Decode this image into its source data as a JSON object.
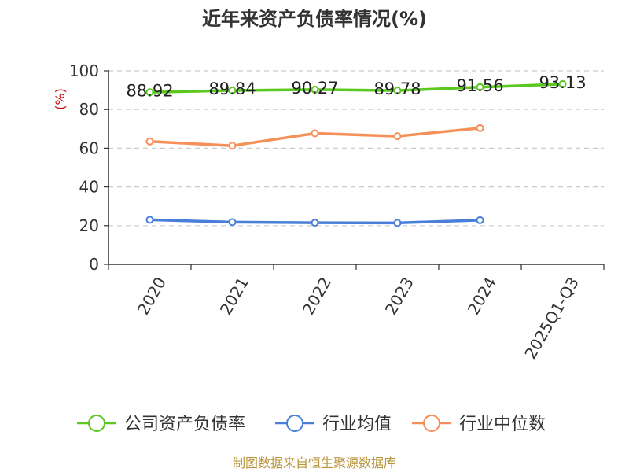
{
  "chart_data": {
    "type": "line",
    "title": "近年来资产负债率情况(%)",
    "ylabel": "(%)",
    "ylim": [
      0,
      100
    ],
    "yticks": [
      0,
      20,
      40,
      60,
      80,
      100
    ],
    "grid": true,
    "legend_position": "bottom",
    "categories": [
      "2020",
      "2021",
      "2022",
      "2023",
      "2024",
      "2025Q1-Q3"
    ],
    "series": [
      {
        "name": "公司资产负债率",
        "color": "#5ac81e",
        "values": [
          88.92,
          89.84,
          90.27,
          89.78,
          91.56,
          93.13
        ],
        "labels": [
          "88.92",
          "89.84",
          "90.27",
          "89.78",
          "91.56",
          "93.13"
        ]
      },
      {
        "name": "行业均值",
        "color": "#4a7fd9",
        "values": [
          23.0,
          21.8,
          21.5,
          21.4,
          22.8,
          null
        ]
      },
      {
        "name": "行业中位数",
        "color": "#f59058",
        "values": [
          63.5,
          61.3,
          67.7,
          66.2,
          70.4,
          null
        ]
      }
    ]
  },
  "source_text": "制图数据来自恒生聚源数据库"
}
